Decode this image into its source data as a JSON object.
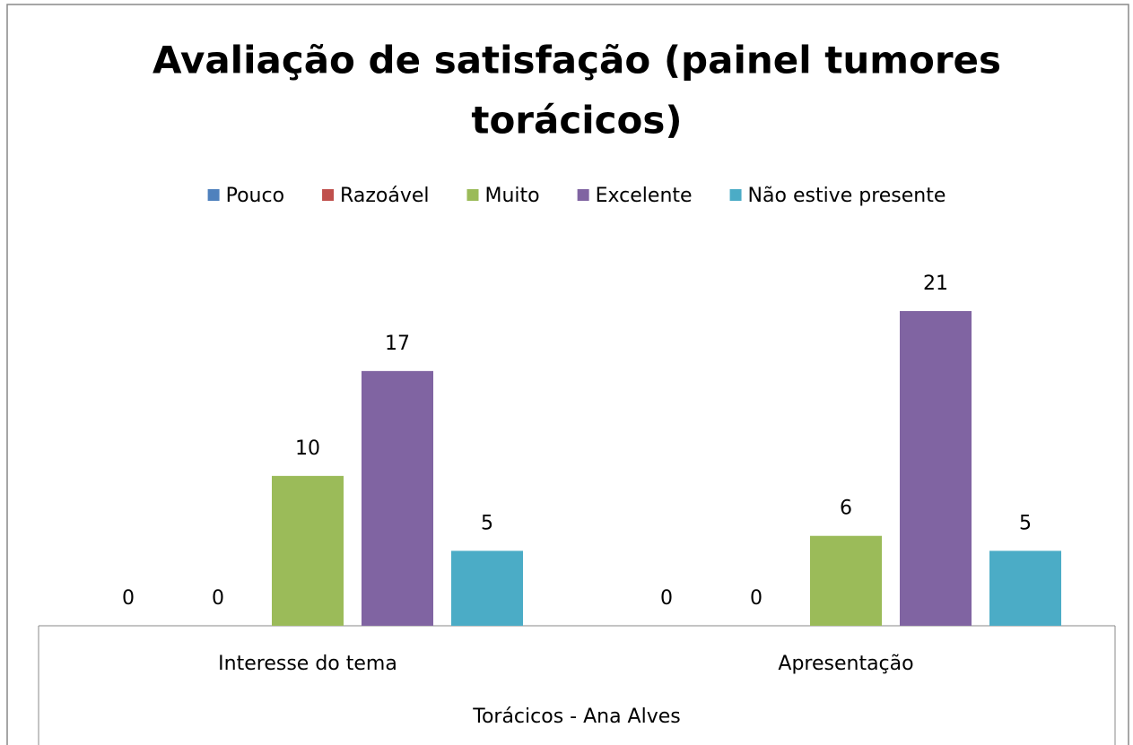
{
  "chart_data": {
    "type": "bar",
    "title": "Avaliação de satisfação (painel tumores torácicos)",
    "x_label": "Torácicos - Ana Alves",
    "categories": [
      "Interesse do tema",
      "Apresentação"
    ],
    "series": [
      {
        "name": "Pouco",
        "color": "#4f81bd",
        "values": [
          0,
          0
        ]
      },
      {
        "name": "Razoável",
        "color": "#c0504d",
        "values": [
          0,
          0
        ]
      },
      {
        "name": "Muito",
        "color": "#9bbb59",
        "values": [
          10,
          6
        ]
      },
      {
        "name": "Excelente",
        "color": "#8064a2",
        "values": [
          17,
          21
        ]
      },
      {
        "name": "Não estive presente",
        "color": "#4bacc6",
        "values": [
          5,
          5
        ]
      }
    ],
    "legend": "top"
  }
}
